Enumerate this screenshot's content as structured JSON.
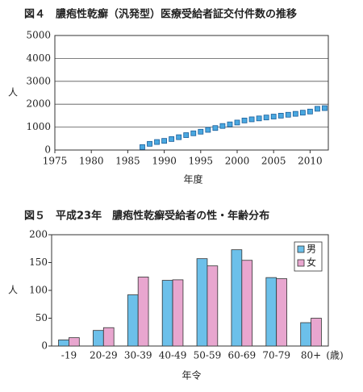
{
  "chart_data": [
    {
      "type": "scatter",
      "title": "図４　膿疱性乾癬（汎発型）医療受給者証交付件数の推移",
      "x_label": "年度",
      "y_label": "人",
      "x": [
        1987,
        1988,
        1989,
        1990,
        1991,
        1992,
        1993,
        1994,
        1995,
        1996,
        1997,
        1998,
        1999,
        2000,
        2001,
        2002,
        2003,
        2004,
        2005,
        2006,
        2007,
        2008,
        2009,
        2010,
        2011,
        2012
      ],
      "values": [
        130,
        270,
        350,
        400,
        480,
        560,
        650,
        730,
        800,
        880,
        960,
        1050,
        1120,
        1200,
        1290,
        1340,
        1380,
        1420,
        1460,
        1500,
        1540,
        1580,
        1630,
        1680,
        1800,
        1830
      ],
      "color": "#4aa8e0",
      "xlim": [
        1975,
        2012.5
      ],
      "xticks": [
        1975,
        1980,
        1985,
        1990,
        1995,
        2000,
        2005,
        2010
      ],
      "ylim": [
        0,
        5000
      ],
      "yticks": [
        0,
        1000,
        2000,
        3000,
        4000,
        5000
      ],
      "grid": true
    },
    {
      "type": "bar",
      "title": "図５　平成23年　膿疱性乾癬受給者の性・年齢分布",
      "x_label": "年令",
      "y_label": "人",
      "annotation": "(歳)",
      "categories": [
        "-19",
        "20-29",
        "30-39",
        "40-49",
        "50-59",
        "60-69",
        "70-79",
        "80+"
      ],
      "series": [
        {
          "name": "男",
          "color": "#6cc0ea",
          "values": [
            11,
            28,
            92,
            118,
            157,
            173,
            123,
            42
          ]
        },
        {
          "name": "女",
          "color": "#e8a6cf",
          "values": [
            15,
            33,
            124,
            119,
            144,
            154,
            121,
            50
          ]
        }
      ],
      "ylim": [
        0,
        200
      ],
      "yticks": [
        0,
        50,
        100,
        150,
        200
      ],
      "grid": false,
      "legend": "top-right"
    }
  ]
}
